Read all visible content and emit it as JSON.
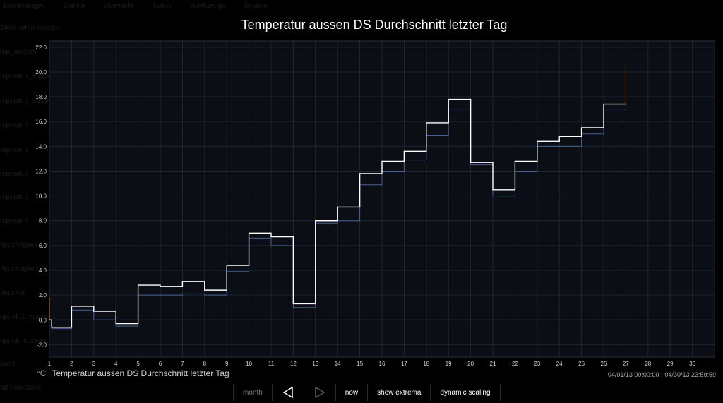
{
  "background_menu": [
    "Einstellungen",
    "Geräte",
    "Übersicht",
    "Status",
    "Werkzeuge",
    "System"
  ],
  "background_sidebar": [
    "2436 Temp aussen",
    "mp_aussen",
    "mperatur_aussen",
    "mperatur_aussen DS Durchschnitt",
    "mperatur",
    "mperatur",
    "mperatur",
    "mperatur",
    "mperatur",
    "tfeuchtigkeit",
    "tfeuchtigkeit",
    "tfeuchte",
    "upunkt1_aussen",
    "upunkt aussen",
    "Wert",
    "nd max Boee"
  ],
  "colors": {
    "background": "#000000",
    "plot_bg": "#0b0e14",
    "grid": "#1e2633",
    "series_avg": "#ffffff",
    "series_min": "#4a6a9e",
    "series_max": "#c07a55"
  },
  "chart_data": {
    "type": "line",
    "title": "Temperatur aussen DS Durchschnitt letzter Tag",
    "xlabel": "",
    "ylabel": "°C",
    "x_ticks": [
      1,
      2,
      3,
      4,
      5,
      6,
      7,
      8,
      9,
      10,
      11,
      12,
      13,
      14,
      15,
      16,
      17,
      18,
      19,
      20,
      21,
      22,
      23,
      24,
      25,
      26,
      27,
      28,
      29,
      30,
      31
    ],
    "x_tick_labels": [
      "1",
      "2",
      "3",
      "4",
      "5",
      "6",
      "7",
      "8",
      "9",
      "10",
      "11",
      "12",
      "13",
      "14",
      "15",
      "16",
      "17",
      "18",
      "19",
      "20",
      "21",
      "22",
      "23",
      "24",
      "25",
      "26",
      "27",
      "28",
      "29",
      "30",
      ""
    ],
    "y_ticks": [
      -2,
      0,
      2,
      4,
      6,
      8,
      10,
      12,
      14,
      16,
      18,
      20,
      22
    ],
    "y_tick_labels": [
      "-2.0",
      "0.0",
      "2.0",
      "4.0",
      "6.0",
      "8.0",
      "10.0",
      "12.0",
      "14.0",
      "16.0",
      "18.0",
      "20.0",
      "22.0"
    ],
    "xlim": [
      1,
      31
    ],
    "ylim": [
      -3,
      22.5
    ],
    "grid": true,
    "series": [
      {
        "name": "Temperatur aussen DS Durchschnitt letzter Tag",
        "color": "#ffffff",
        "x": [
          1,
          1.1,
          2,
          3,
          4,
          5,
          6,
          7,
          8,
          9,
          10,
          11,
          12,
          13,
          14,
          15,
          16,
          17,
          18,
          19,
          20,
          21,
          22,
          23,
          24,
          25,
          26,
          27
        ],
        "y": [
          0,
          -0.6,
          1.1,
          0.7,
          -0.3,
          2.8,
          2.7,
          3.1,
          2.4,
          4.4,
          7.0,
          6.7,
          1.3,
          8.0,
          9.1,
          11.8,
          12.8,
          13.6,
          15.9,
          17.8,
          12.7,
          10.5,
          12.8,
          14.4,
          14.8,
          15.5,
          17.4,
          17.4
        ]
      },
      {
        "name": "",
        "color": "#4a6a9e",
        "x": [
          1,
          1.1,
          2,
          3,
          4,
          5,
          6,
          7,
          8,
          9,
          10,
          11,
          12,
          13,
          14,
          15,
          16,
          17,
          18,
          19,
          20,
          21,
          22,
          23,
          24,
          25,
          26,
          27
        ],
        "y": [
          0,
          -0.7,
          0.8,
          0.0,
          -0.5,
          2.0,
          2.0,
          2.1,
          2.0,
          3.9,
          6.6,
          6.0,
          1.0,
          7.8,
          8.0,
          10.9,
          12.0,
          12.9,
          14.9,
          17.0,
          12.5,
          10.0,
          12.0,
          14.0,
          14.0,
          15.0,
          17.0,
          17.0
        ]
      }
    ],
    "spikes": [
      {
        "x": 1,
        "y": 1.8,
        "color": "#c07a55"
      },
      {
        "x": 27,
        "y": 20.4,
        "color": "#c07a55"
      }
    ]
  },
  "legend": {
    "unit": "°C",
    "label": "Temperatur aussen DS Durchschnitt letzter Tag"
  },
  "time_range": "04/01/13 00:00:00 - 04/30/13 23:59:59",
  "controls": {
    "month_label": "month",
    "prev_icon": "triangle-left-icon",
    "next_icon": "triangle-right-icon",
    "now_label": "now",
    "extrema_label": "show extrema",
    "scaling_label": "dynamic scaling"
  }
}
